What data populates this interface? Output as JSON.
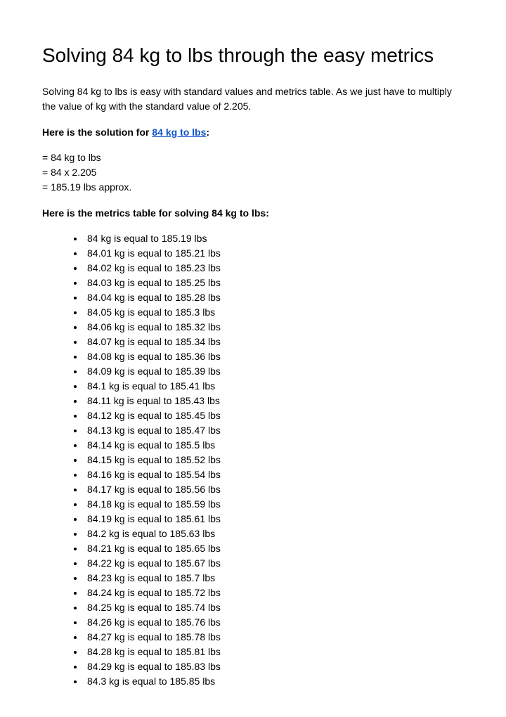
{
  "title": "Solving 84 kg to lbs through the easy metrics",
  "intro": "Solving 84 kg to lbs is easy with standard values and metrics table. As we just have to multiply the value of kg with the standard value of 2.205.",
  "solution_label_prefix": "Here is the solution for ",
  "solution_link": "84 kg to lbs",
  "solution_label_suffix": ":",
  "calculation": {
    "line1": "= 84 kg to lbs",
    "line2": "= 84 x 2.205",
    "line3": "= 185.19 lbs approx."
  },
  "table_label": "Here is the metrics table for solving 84 kg to lbs:",
  "link_color": "#1155cc",
  "text_color": "#000000",
  "background_color": "#ffffff",
  "font_family": "Arial, sans-serif",
  "title_fontsize": 28,
  "body_fontsize": 14,
  "conversions": [
    {
      "kg": "84",
      "lbs": "185.19"
    },
    {
      "kg": "84.01",
      "lbs": "185.21"
    },
    {
      "kg": "84.02",
      "lbs": "185.23"
    },
    {
      "kg": "84.03",
      "lbs": "185.25"
    },
    {
      "kg": "84.04",
      "lbs": "185.28"
    },
    {
      "kg": "84.05",
      "lbs": "185.3"
    },
    {
      "kg": "84.06",
      "lbs": "185.32"
    },
    {
      "kg": "84.07",
      "lbs": "185.34"
    },
    {
      "kg": "84.08",
      "lbs": "185.36"
    },
    {
      "kg": "84.09",
      "lbs": "185.39"
    },
    {
      "kg": "84.1",
      "lbs": "185.41"
    },
    {
      "kg": "84.11",
      "lbs": "185.43"
    },
    {
      "kg": "84.12",
      "lbs": "185.45"
    },
    {
      "kg": "84.13",
      "lbs": "185.47"
    },
    {
      "kg": "84.14",
      "lbs": "185.5"
    },
    {
      "kg": "84.15",
      "lbs": "185.52"
    },
    {
      "kg": "84.16",
      "lbs": "185.54"
    },
    {
      "kg": "84.17",
      "lbs": "185.56"
    },
    {
      "kg": "84.18",
      "lbs": "185.59"
    },
    {
      "kg": "84.19",
      "lbs": "185.61"
    },
    {
      "kg": "84.2",
      "lbs": "185.63"
    },
    {
      "kg": "84.21",
      "lbs": "185.65"
    },
    {
      "kg": "84.22",
      "lbs": "185.67"
    },
    {
      "kg": "84.23",
      "lbs": "185.7"
    },
    {
      "kg": "84.24",
      "lbs": "185.72"
    },
    {
      "kg": "84.25",
      "lbs": "185.74"
    },
    {
      "kg": "84.26",
      "lbs": "185.76"
    },
    {
      "kg": "84.27",
      "lbs": "185.78"
    },
    {
      "kg": "84.28",
      "lbs": "185.81"
    },
    {
      "kg": "84.29",
      "lbs": "185.83"
    },
    {
      "kg": "84.3",
      "lbs": "185.85"
    }
  ]
}
